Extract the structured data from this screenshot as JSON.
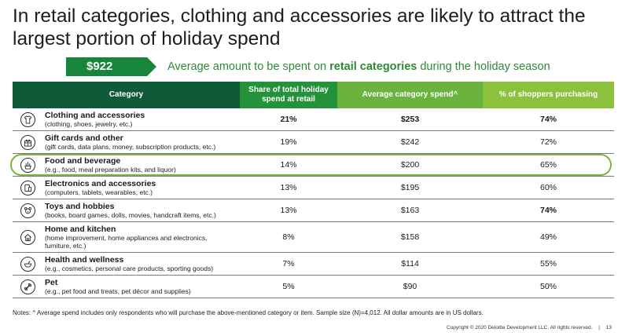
{
  "title": "In retail categories, clothing and accessories are likely to attract the largest portion of holiday spend",
  "banner": {
    "amount": "$922",
    "text_before": "Average amount to be spent on ",
    "text_bold": "retail categories",
    "text_after": " during the holiday season"
  },
  "table": {
    "headers": [
      "Category",
      "Share of total holiday spend at retail",
      "Average category spend^",
      "% of shoppers purchasing"
    ],
    "rows": [
      {
        "name": "Clothing and accessories",
        "desc": "(clothing, shoes, jewelry, etc.)",
        "share": "21%",
        "spend": "$253",
        "pct": "74%",
        "icon": "shirt-icon"
      },
      {
        "name": "Gift cards and other",
        "desc": "(gift cards, data plans, money, subscription products, etc.)",
        "share": "19%",
        "spend": "$242",
        "pct": "72%",
        "icon": "gift-icon"
      },
      {
        "name": "Food and beverage",
        "desc": "(e.g., food, meal preparation kits, and liquor)",
        "share": "14%",
        "spend": "$200",
        "pct": "65%",
        "icon": "food-icon"
      },
      {
        "name": "Electronics and accessories",
        "desc": "(computers, tablets, wearables, etc.)",
        "share": "13%",
        "spend": "$195",
        "pct": "60%",
        "icon": "devices-icon"
      },
      {
        "name": "Toys and hobbies",
        "desc": "(books, board games, dolls, movies, handcraft items, etc.)",
        "share": "13%",
        "spend": "$163",
        "pct": "74%",
        "icon": "toy-icon"
      },
      {
        "name": "Home and kitchen",
        "desc": "(home improvement, home appliances and electronics, furniture, etc.)",
        "share": "8%",
        "spend": "$158",
        "pct": "49%",
        "icon": "home-icon"
      },
      {
        "name": "Health and wellness",
        "desc": "(e.g., cosmetics, personal care products, sporting goods)",
        "share": "7%",
        "spend": "$114",
        "pct": "55%",
        "icon": "health-icon"
      },
      {
        "name": "Pet",
        "desc": "(e.g., pet food and treats, pet décor and supplies)",
        "share": "5%",
        "spend": "$90",
        "pct": "50%",
        "icon": "bone-icon"
      }
    ]
  },
  "notes": "Notes: ^ Average spend includes only respondents who will purchase the above-mentioned category or item. Sample size (N)=4,012. All dollar amounts are in US dollars.",
  "copyright": "Copyright © 2020 Deloitte Development LLC. All rights reserved.",
  "page_separator": "|",
  "page_number": "13"
}
